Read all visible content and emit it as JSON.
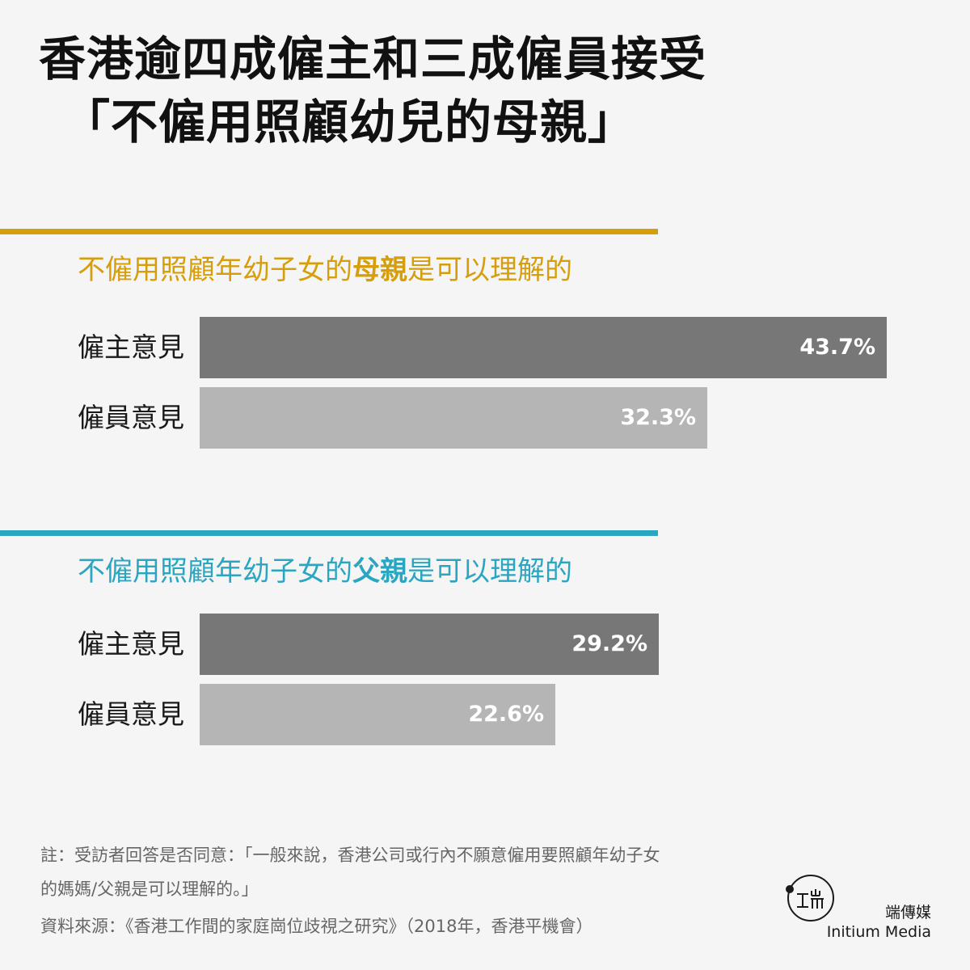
{
  "title": {
    "line1": "香港逾四成僱主和三成僱員接受",
    "line2": "「不僱用照顧幼兒的母親」"
  },
  "colors": {
    "mother_accent": "#d69e0b",
    "father_accent": "#2aa6c1",
    "employer_bar": "#777777",
    "employee_bar": "#b5b5b5"
  },
  "chart_data": [
    {
      "type": "bar",
      "orientation": "horizontal",
      "title_parts": {
        "before": "不僱用照顧年幼子女的",
        "highlight": "母親",
        "after": "是可以理解的"
      },
      "categories": [
        "僱主意見",
        "僱員意見"
      ],
      "values": [
        43.7,
        32.3
      ],
      "value_labels": [
        "43.7%",
        "32.3%"
      ],
      "unit": "%",
      "xlim": [
        0,
        43.7
      ]
    },
    {
      "type": "bar",
      "orientation": "horizontal",
      "title_parts": {
        "before": "不僱用照顧年幼子女的",
        "highlight": "父親",
        "after": "是可以理解的"
      },
      "categories": [
        "僱主意見",
        "僱員意見"
      ],
      "values": [
        29.2,
        22.6
      ],
      "value_labels": [
        "29.2%",
        "22.6%"
      ],
      "unit": "%",
      "xlim": [
        0,
        43.7
      ]
    }
  ],
  "footnotes": {
    "note_line1": "註：受訪者回答是否同意：「一般來說，香港公司或行內不願意僱用要照顧年幼子女",
    "note_line2": "的媽媽/父親是可以理解的。」",
    "source": "資料來源：《香港工作間的家庭崗位歧視之研究》（2018年，香港平機會）"
  },
  "logo": {
    "zh": "端傳媒",
    "en": "Initium Media",
    "mark_icon": "initium-logo-icon"
  }
}
